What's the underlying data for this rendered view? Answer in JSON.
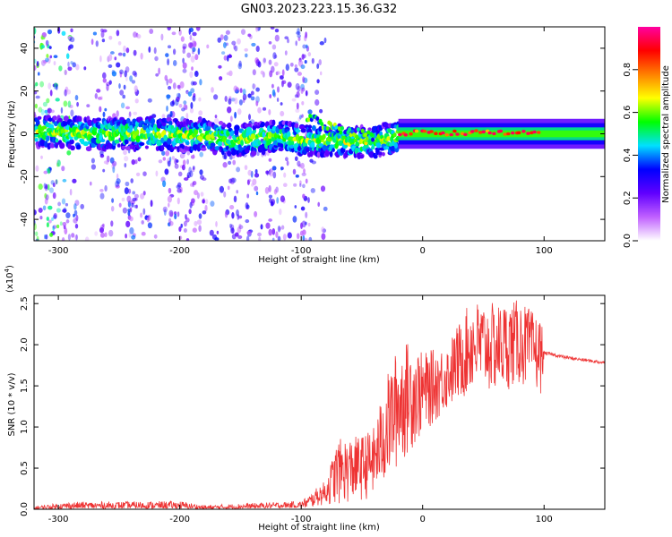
{
  "title": "GN03.2023.223.15.36.G32",
  "chart_data": [
    {
      "type": "heatmap",
      "name": "spectrogram",
      "xlabel": "Height of straight line (km)",
      "ylabel": "Frequency (Hz)",
      "xlim": [
        -320,
        150
      ],
      "ylim": [
        -50,
        50
      ],
      "xticks": [
        -300,
        -200,
        -100,
        0,
        100
      ],
      "yticks": [
        -40,
        -20,
        0,
        20,
        40
      ],
      "colorbar": {
        "label": "Normalized spectral amplitude",
        "range": [
          0,
          1
        ],
        "ticks": [
          0.0,
          0.2,
          0.4,
          0.6,
          0.8
        ],
        "colormap": [
          "#ffffff",
          "#c060ff",
          "#6000ff",
          "#0000ff",
          "#00e0ff",
          "#00ff00",
          "#ffff00",
          "#ff8000",
          "#ff0000",
          "#ff00a0"
        ]
      },
      "ridge": [
        {
          "x": -310,
          "f": 1
        },
        {
          "x": -280,
          "f": 0
        },
        {
          "x": -250,
          "f": 0
        },
        {
          "x": -220,
          "f": 0
        },
        {
          "x": -180,
          "f": -1
        },
        {
          "x": -150,
          "f": -3
        },
        {
          "x": -120,
          "f": -1
        },
        {
          "x": -100,
          "f": -3
        },
        {
          "x": -80,
          "f": -3
        },
        {
          "x": -60,
          "f": -4
        },
        {
          "x": -40,
          "f": -4
        },
        {
          "x": -20,
          "f": -1
        },
        {
          "x": 0,
          "f": 1
        },
        {
          "x": 50,
          "f": 0
        },
        {
          "x": 100,
          "f": 0
        },
        {
          "x": 150,
          "f": 1
        }
      ],
      "branch": [
        {
          "x": -95,
          "f": 8
        },
        {
          "x": -80,
          "f": 4
        },
        {
          "x": -60,
          "f": 1
        },
        {
          "x": -40,
          "f": -1
        }
      ],
      "peak_band": {
        "x_start": -20,
        "x_end": 95,
        "value": 0.95
      }
    },
    {
      "type": "line",
      "name": "snr",
      "xlabel": "Height of straight line (km)",
      "ylabel": "SNR (10 * v/v)",
      "multiplier_label": "(x10",
      "multiplier_exp": "4",
      "multiplier_close": ")",
      "xlim": [
        -320,
        150
      ],
      "ylim": [
        0,
        2.6
      ],
      "xticks": [
        -300,
        -200,
        -100,
        0,
        100
      ],
      "yticks": [
        0.0,
        0.5,
        1.0,
        1.5,
        2.0,
        2.5
      ],
      "color": "#ee3333",
      "envelope": [
        {
          "x": -320,
          "lo": 0.0,
          "hi": 0.04
        },
        {
          "x": -290,
          "lo": 0.01,
          "hi": 0.09
        },
        {
          "x": -200,
          "lo": 0.01,
          "hi": 0.1
        },
        {
          "x": -180,
          "lo": 0.0,
          "hi": 0.05
        },
        {
          "x": -100,
          "lo": 0.02,
          "hi": 0.1
        },
        {
          "x": -80,
          "lo": 0.05,
          "hi": 0.35
        },
        {
          "x": -70,
          "lo": 0.05,
          "hi": 0.85
        },
        {
          "x": -50,
          "lo": 0.1,
          "hi": 0.9
        },
        {
          "x": -40,
          "lo": 0.15,
          "hi": 1.0
        },
        {
          "x": -30,
          "lo": 0.3,
          "hi": 1.6
        },
        {
          "x": -20,
          "lo": 0.5,
          "hi": 2.0
        },
        {
          "x": -10,
          "lo": 0.7,
          "hi": 2.05
        },
        {
          "x": 0,
          "lo": 0.9,
          "hi": 1.9
        },
        {
          "x": 20,
          "lo": 1.2,
          "hi": 2.0
        },
        {
          "x": 40,
          "lo": 1.4,
          "hi": 2.55
        },
        {
          "x": 60,
          "lo": 1.4,
          "hi": 2.5
        },
        {
          "x": 80,
          "lo": 1.5,
          "hi": 2.55
        },
        {
          "x": 98,
          "lo": 1.4,
          "hi": 2.3
        },
        {
          "x": 100,
          "lo": 1.88,
          "hi": 1.92
        },
        {
          "x": 120,
          "lo": 1.82,
          "hi": 1.86
        },
        {
          "x": 150,
          "lo": 1.76,
          "hi": 1.8
        }
      ]
    }
  ]
}
